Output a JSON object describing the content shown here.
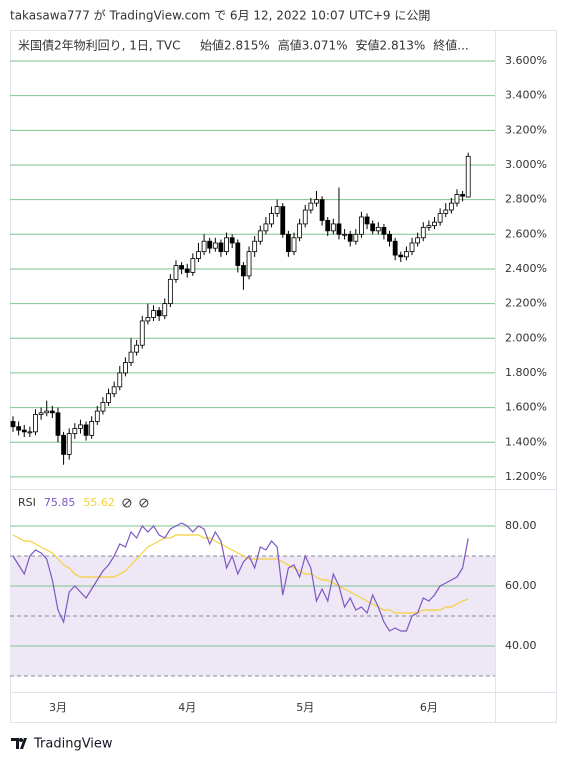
{
  "header": "takasawa777 が TradingView.com で 6月 12, 2022 10:07 UTC+9 に公開",
  "footer": "TradingView",
  "chart_data": [
    {
      "type": "candlestick",
      "title": "米国債2年物利回り, 1日, TVC",
      "info": [
        "始値2.815%",
        "高値3.071%",
        "安値2.813%",
        "終値..."
      ],
      "categories": [
        null,
        null,
        null,
        null,
        null,
        null,
        null,
        null,
        "3月",
        null,
        null,
        null,
        null,
        null,
        null,
        null,
        null,
        null,
        null,
        null,
        null,
        null,
        null,
        null,
        null,
        null,
        null,
        null,
        null,
        null,
        null,
        "4月",
        null,
        null,
        null,
        null,
        null,
        null,
        null,
        null,
        null,
        null,
        null,
        null,
        null,
        null,
        null,
        null,
        null,
        null,
        null,
        null,
        "5月",
        null,
        null,
        null,
        null,
        null,
        null,
        null,
        null,
        null,
        null,
        null,
        null,
        null,
        null,
        null,
        null,
        null,
        null,
        null,
        null,
        null,
        "6月",
        null,
        null,
        null,
        null,
        null,
        null,
        null
      ],
      "open": [
        1.52,
        1.49,
        1.47,
        1.46,
        1.46,
        1.56,
        1.57,
        1.58,
        1.57,
        1.44,
        1.33,
        1.45,
        1.48,
        1.5,
        1.44,
        1.52,
        1.58,
        1.63,
        1.68,
        1.72,
        1.8,
        1.86,
        1.92,
        1.96,
        2.1,
        2.12,
        2.16,
        2.13,
        2.2,
        2.34,
        2.42,
        2.4,
        2.38,
        2.46,
        2.5,
        2.56,
        2.52,
        2.55,
        2.5,
        2.58,
        2.55,
        2.42,
        2.36,
        2.5,
        2.56,
        2.62,
        2.66,
        2.72,
        2.76,
        2.6,
        2.5,
        2.58,
        2.66,
        2.74,
        2.78,
        2.8,
        2.68,
        2.62,
        2.66,
        2.6,
        2.6,
        2.56,
        2.6,
        2.7,
        2.66,
        2.62,
        2.64,
        2.6,
        2.56,
        2.48,
        2.47,
        2.5,
        2.55,
        2.58,
        2.64,
        2.65,
        2.67,
        2.72,
        2.74,
        2.78,
        2.83,
        2.815
      ],
      "high": [
        1.55,
        1.52,
        1.5,
        1.49,
        1.59,
        1.6,
        1.64,
        1.61,
        1.6,
        1.46,
        1.48,
        1.51,
        1.53,
        1.52,
        1.55,
        1.61,
        1.66,
        1.71,
        1.75,
        1.84,
        1.89,
        2.0,
        1.99,
        2.13,
        2.2,
        2.19,
        2.18,
        2.23,
        2.37,
        2.45,
        2.44,
        2.43,
        2.49,
        2.55,
        2.6,
        2.58,
        2.58,
        2.57,
        2.61,
        2.6,
        2.57,
        2.44,
        2.53,
        2.59,
        2.65,
        2.7,
        2.76,
        2.8,
        2.78,
        2.62,
        2.61,
        2.69,
        2.77,
        2.81,
        2.85,
        2.82,
        2.7,
        2.69,
        2.87,
        2.63,
        2.62,
        2.63,
        2.73,
        2.72,
        2.68,
        2.67,
        2.66,
        2.62,
        2.58,
        2.5,
        2.53,
        2.58,
        2.61,
        2.67,
        2.68,
        2.7,
        2.75,
        2.78,
        2.81,
        2.86,
        2.85,
        3.071
      ],
      "low": [
        1.46,
        1.44,
        1.43,
        1.43,
        1.44,
        1.53,
        1.55,
        1.54,
        1.4,
        1.27,
        1.3,
        1.42,
        1.45,
        1.41,
        1.42,
        1.5,
        1.56,
        1.61,
        1.66,
        1.7,
        1.78,
        1.84,
        1.9,
        1.94,
        2.08,
        2.1,
        2.1,
        2.11,
        2.18,
        2.32,
        2.37,
        2.35,
        2.36,
        2.44,
        2.48,
        2.49,
        2.5,
        2.47,
        2.48,
        2.52,
        2.38,
        2.28,
        2.34,
        2.47,
        2.54,
        2.6,
        2.64,
        2.7,
        2.58,
        2.47,
        2.48,
        2.56,
        2.64,
        2.72,
        2.76,
        2.65,
        2.59,
        2.6,
        2.57,
        2.57,
        2.53,
        2.54,
        2.58,
        2.63,
        2.6,
        2.6,
        2.57,
        2.53,
        2.45,
        2.44,
        2.45,
        2.48,
        2.53,
        2.56,
        2.62,
        2.63,
        2.65,
        2.7,
        2.72,
        2.76,
        2.79,
        2.813
      ],
      "close": [
        1.49,
        1.47,
        1.46,
        1.46,
        1.56,
        1.57,
        1.58,
        1.57,
        1.44,
        1.33,
        1.45,
        1.48,
        1.5,
        1.44,
        1.52,
        1.58,
        1.63,
        1.68,
        1.72,
        1.8,
        1.86,
        1.92,
        1.96,
        2.1,
        2.12,
        2.16,
        2.13,
        2.2,
        2.34,
        2.42,
        2.4,
        2.38,
        2.46,
        2.5,
        2.56,
        2.52,
        2.55,
        2.5,
        2.58,
        2.55,
        2.42,
        2.36,
        2.5,
        2.56,
        2.62,
        2.66,
        2.72,
        2.76,
        2.6,
        2.5,
        2.58,
        2.66,
        2.74,
        2.78,
        2.8,
        2.68,
        2.62,
        2.66,
        2.6,
        2.6,
        2.56,
        2.6,
        2.7,
        2.66,
        2.62,
        2.64,
        2.6,
        2.56,
        2.48,
        2.47,
        2.5,
        2.55,
        2.58,
        2.64,
        2.65,
        2.67,
        2.72,
        2.74,
        2.78,
        2.83,
        2.82,
        3.05
      ],
      "up_color": "#ffffff",
      "down_color": "#000000",
      "grid_color": "#7fc48a",
      "ylim": [
        1.136,
        3.779
      ],
      "yticks": [
        {
          "value": 1.2,
          "label": "1.200%"
        },
        {
          "value": 1.4,
          "label": "1.400%"
        },
        {
          "value": 1.6,
          "label": "1.600%"
        },
        {
          "value": 1.8,
          "label": "1.800%"
        },
        {
          "value": 2.0,
          "label": "2.000%"
        },
        {
          "value": 2.2,
          "label": "2.200%"
        },
        {
          "value": 2.4,
          "label": "2.400%"
        },
        {
          "value": 2.6,
          "label": "2.600%"
        },
        {
          "value": 2.8,
          "label": "2.800%"
        },
        {
          "value": 3.0,
          "label": "3.000%"
        },
        {
          "value": 3.2,
          "label": "3.200%"
        },
        {
          "value": 3.4,
          "label": "3.400%"
        },
        {
          "value": 3.6,
          "label": "3.600%"
        }
      ],
      "grid": true
    },
    {
      "type": "line",
      "title": "RSI",
      "series": [
        {
          "color": "#7e57c2",
          "values": [
            70,
            67,
            64,
            70,
            72,
            71,
            69,
            62,
            52,
            48,
            58,
            60,
            58,
            56,
            59,
            62,
            65,
            67,
            70,
            74,
            73,
            78,
            76,
            80,
            78,
            80,
            77,
            76,
            79,
            80,
            81,
            80,
            78,
            80,
            79,
            74,
            78,
            75,
            66,
            70,
            64,
            68,
            70,
            66,
            73,
            72,
            75,
            73,
            57,
            66,
            67,
            63,
            70,
            66,
            55,
            59,
            55,
            64,
            60,
            53,
            56,
            52,
            53,
            51,
            57,
            53,
            48,
            45,
            46,
            45,
            45,
            50,
            51,
            56,
            55,
            57,
            60,
            61,
            62,
            63,
            66,
            75.85
          ]
        },
        {
          "color": "#f5d03b",
          "values": [
            77,
            76,
            75,
            75,
            74,
            73,
            72,
            71,
            69,
            67,
            66,
            64,
            63,
            63,
            63,
            63,
            63,
            63,
            63,
            64,
            65,
            67,
            69,
            71,
            73,
            74,
            75,
            76,
            76,
            77,
            77,
            77,
            77,
            77,
            76,
            76,
            75,
            74,
            73,
            72,
            71,
            70,
            69,
            69,
            69,
            69,
            69,
            69,
            68,
            67,
            66,
            65,
            64,
            64,
            63,
            62,
            62,
            61,
            60,
            59,
            58,
            57,
            56,
            55,
            54,
            53,
            52,
            52,
            51,
            51,
            51,
            51,
            51,
            52,
            52,
            52,
            52,
            53,
            53,
            54,
            55,
            55.62
          ]
        }
      ],
      "ylim": [
        24.67,
        92.33
      ],
      "yticks": [
        {
          "value": 40,
          "label": "40.00"
        },
        {
          "value": 60,
          "label": "60.00"
        },
        {
          "value": 80,
          "label": "80.00"
        }
      ],
      "band": [
        30,
        70
      ],
      "band_color": "#ede7f6",
      "dashed_levels": [
        30,
        50,
        70
      ],
      "grid": true,
      "grid_color": "#7fc48a"
    }
  ]
}
